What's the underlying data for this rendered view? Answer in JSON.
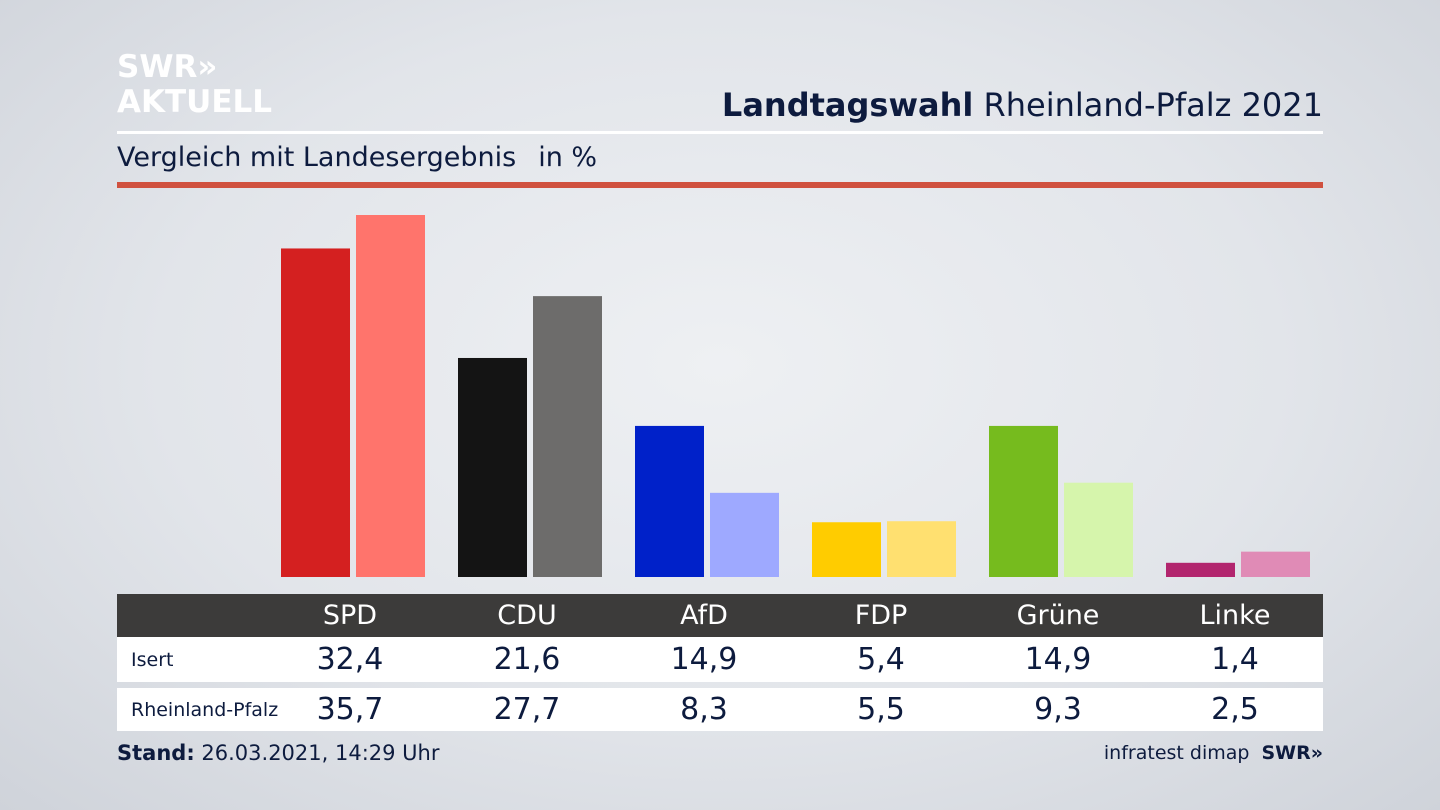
{
  "logo": {
    "line1": "SWR»",
    "line2": "AKTUELL"
  },
  "header": {
    "title_bold": "Landtagswahl",
    "title_rest": " Rheinland-Pfalz 2021"
  },
  "subtitle": {
    "text": "Vergleich mit Landesergebnis",
    "unit": "in %"
  },
  "chart_data": {
    "type": "bar",
    "title": "Landtagswahl Rheinland-Pfalz 2021",
    "subtitle": "Vergleich mit Landesergebnis in %",
    "categories": [
      "SPD",
      "CDU",
      "AfD",
      "FDP",
      "Grüne",
      "Linke"
    ],
    "series": [
      {
        "name": "Isert",
        "values": [
          32.4,
          21.6,
          14.9,
          5.4,
          14.9,
          1.4
        ],
        "colors": [
          "#d42020",
          "#141414",
          "#0021c9",
          "#ffcc00",
          "#76bb1e",
          "#b2256e"
        ]
      },
      {
        "name": "Rheinland-Pfalz",
        "values": [
          35.7,
          27.7,
          8.3,
          5.5,
          9.3,
          2.5
        ],
        "colors": [
          "#ff746c",
          "#6d6c6b",
          "#9ea9ff",
          "#ffe070",
          "#d6f5ac",
          "#e08bb6"
        ]
      }
    ],
    "ylim": [
      0,
      35.7
    ],
    "grid": false,
    "legend": "none"
  },
  "table": {
    "headers": [
      "SPD",
      "CDU",
      "AfD",
      "FDP",
      "Grüne",
      "Linke"
    ],
    "rows": [
      {
        "label": "Isert",
        "values": [
          "32,4",
          "21,6",
          "14,9",
          "5,4",
          "14,9",
          "1,4"
        ]
      },
      {
        "label": "Rheinland-Pfalz",
        "values": [
          "35,7",
          "27,7",
          "8,3",
          "5,5",
          "9,3",
          "2,5"
        ]
      }
    ]
  },
  "footer": {
    "stand_label": "Stand:",
    "stand_value": " 26.03.2021, 14:29 Uhr",
    "source": "infratest dimap",
    "brand": "SWR»"
  }
}
